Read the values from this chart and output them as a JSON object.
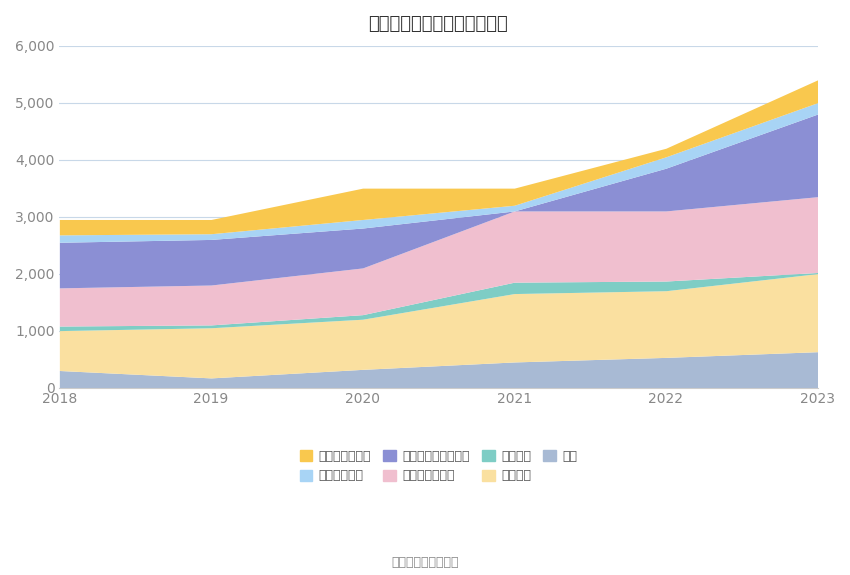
{
  "title": "历年主要负债堆积图（亿元）",
  "years": [
    2018,
    2019,
    2020,
    2021,
    2022,
    2023
  ],
  "stack_order": [
    "其它",
    "应付债券",
    "应付款项",
    "代理买卖证券款",
    "卖出回购金融资产款",
    "衍生金融负债",
    "应付短期融资款"
  ],
  "series_data": {
    "其它": [
      300,
      170,
      320,
      450,
      530,
      630
    ],
    "应付债券": [
      700,
      880,
      880,
      1200,
      1170,
      1370
    ],
    "应付款项": [
      80,
      50,
      80,
      200,
      170,
      20
    ],
    "代理买卖证券款": [
      670,
      700,
      820,
      1250,
      1230,
      1330
    ],
    "卖出回购金融资产款": [
      800,
      800,
      700,
      0,
      750,
      1450
    ],
    "衍生金融负债": [
      130,
      100,
      150,
      100,
      200,
      200
    ],
    "应付短期融资款": [
      270,
      250,
      550,
      300,
      150,
      400
    ]
  },
  "colors": {
    "应付短期融资款": "#F9C84E",
    "衍生金融负债": "#A8D4F5",
    "卖出回购金融资产款": "#8B8FD4",
    "代理买卖证券款": "#F0BFCF",
    "应付款项": "#7ECDC5",
    "应付债券": "#FAE0A0",
    "其它": "#A8BAD4"
  },
  "ylim": [
    0,
    6000
  ],
  "yticks": [
    0,
    1000,
    2000,
    3000,
    4000,
    5000,
    6000
  ],
  "source": "数据来源：恒生聚源",
  "background_color": "#ffffff",
  "grid_color": "#c8d8e8",
  "legend_order": [
    "应付短期融资款",
    "衍生金融负债",
    "卖出回购金融资产款",
    "代理买卖证券款",
    "应付款项",
    "应付债券",
    "其它"
  ]
}
